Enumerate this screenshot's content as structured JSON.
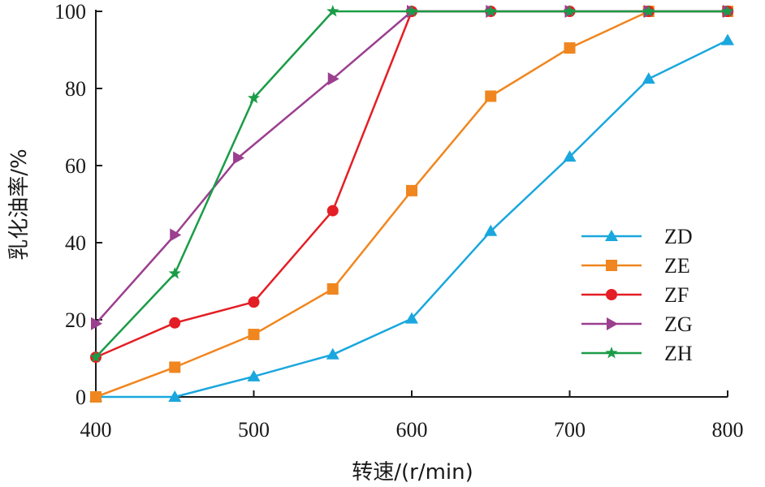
{
  "chart_data": {
    "type": "line",
    "xlabel": "转速/(r/min)",
    "ylabel": "乳化油率/%",
    "xlim": [
      400,
      800
    ],
    "ylim": [
      0,
      100
    ],
    "x_ticks": [
      400,
      500,
      600,
      700,
      800
    ],
    "y_ticks": [
      0,
      20,
      40,
      60,
      80,
      100
    ],
    "grid": false,
    "legend_position": "lower-right",
    "series": [
      {
        "name": "ZD",
        "color": "#1aa7de",
        "marker": "triangle-up",
        "x": [
          400,
          450,
          500,
          550,
          600,
          650,
          700,
          750,
          800
        ],
        "y": [
          0,
          0,
          5.3,
          11,
          20.3,
          43,
          62.3,
          82.5,
          92.5
        ]
      },
      {
        "name": "ZE",
        "color": "#f0861f",
        "marker": "square",
        "x": [
          400,
          450,
          500,
          550,
          600,
          650,
          700,
          750,
          800
        ],
        "y": [
          0,
          7.7,
          16.2,
          28,
          53.5,
          78,
          90.5,
          100,
          100
        ]
      },
      {
        "name": "ZF",
        "color": "#e41e25",
        "marker": "circle",
        "x": [
          400,
          450,
          500,
          550,
          600,
          650,
          700,
          750,
          800
        ],
        "y": [
          10.3,
          19.2,
          24.6,
          48.3,
          100,
          100,
          100,
          100,
          100
        ]
      },
      {
        "name": "ZG",
        "color": "#9b3f8f",
        "marker": "triangle-right",
        "x": [
          400,
          450,
          490,
          550,
          600,
          650,
          700,
          750,
          800
        ],
        "y": [
          19,
          42,
          62,
          82.5,
          100,
          100,
          100,
          100,
          100
        ]
      },
      {
        "name": "ZH",
        "color": "#1a9c47",
        "marker": "star",
        "x": [
          400,
          450,
          500,
          550,
          600,
          650,
          700,
          750,
          800
        ],
        "y": [
          10.3,
          32,
          77.5,
          100,
          100,
          100,
          100,
          100,
          100
        ]
      }
    ]
  }
}
